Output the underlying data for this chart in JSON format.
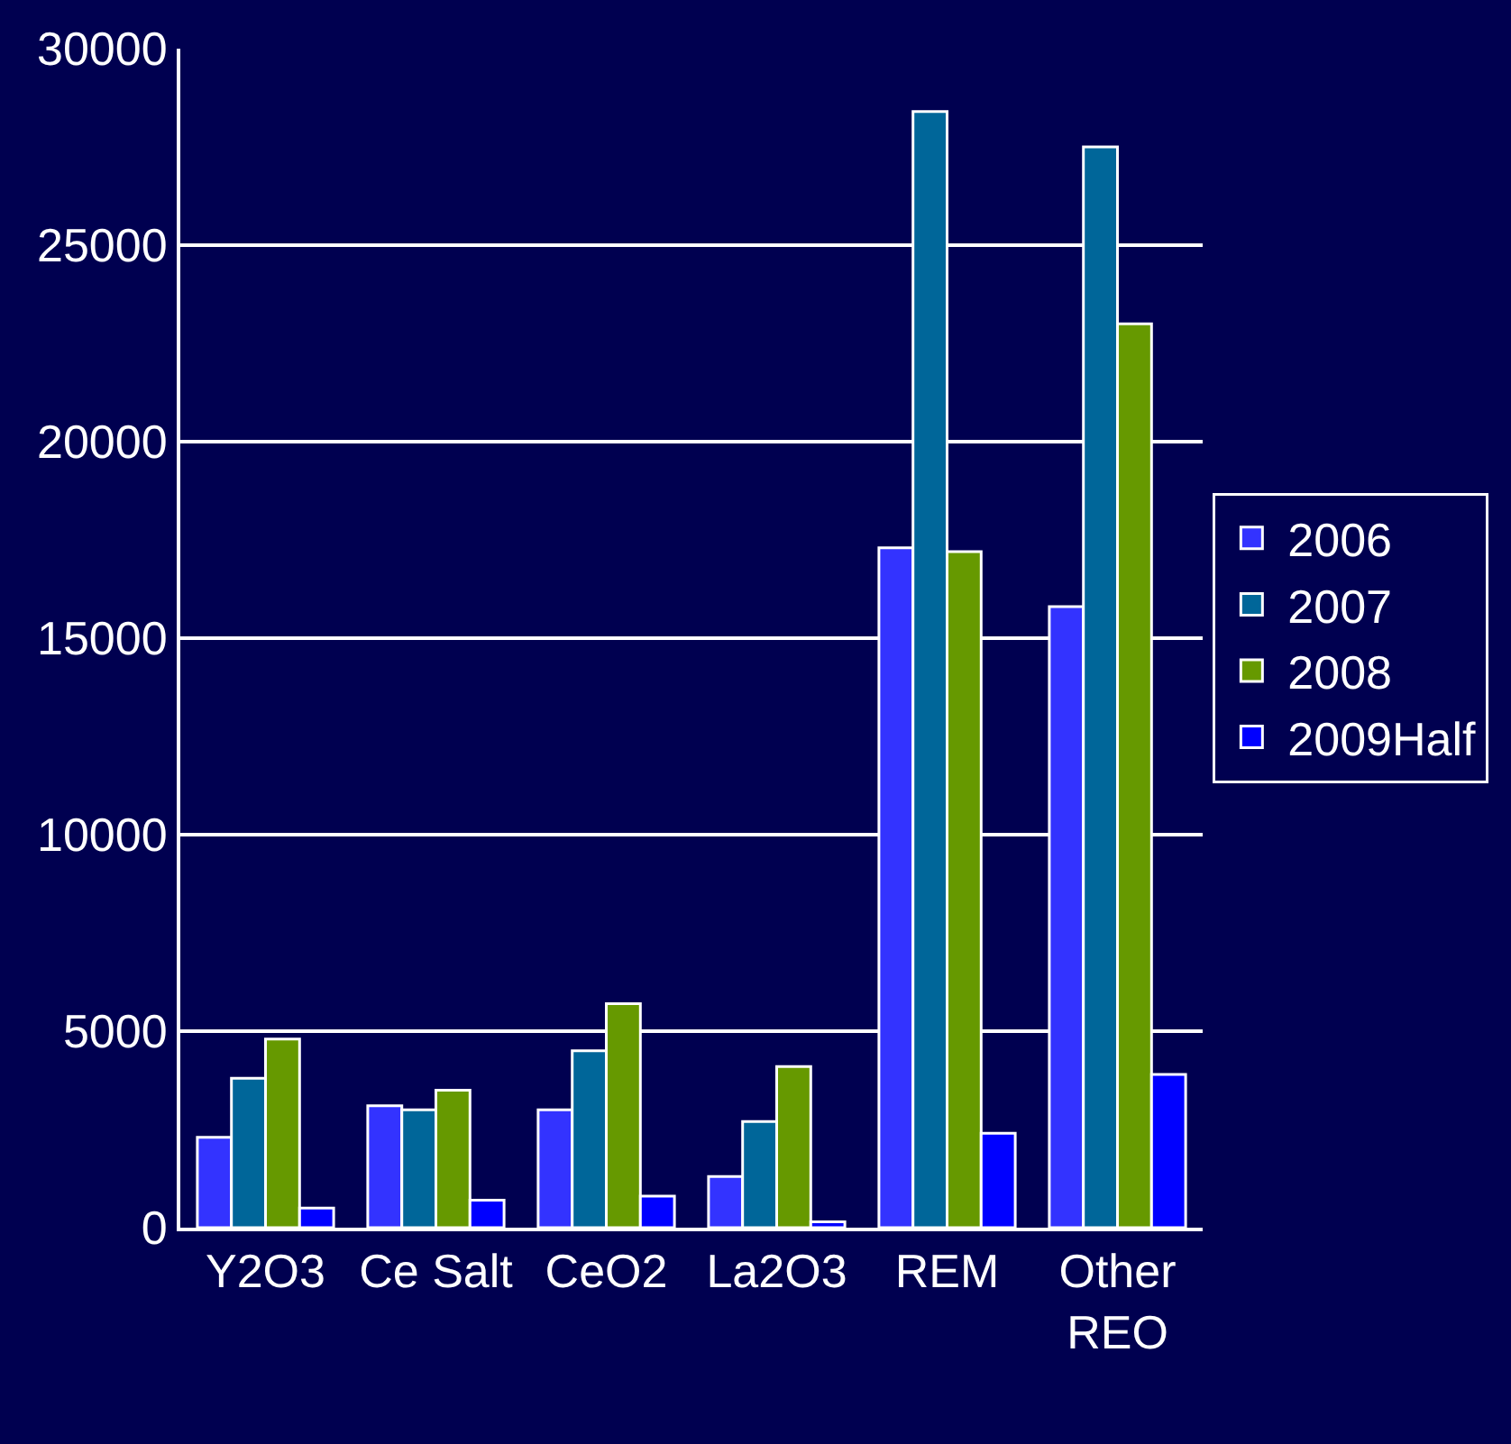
{
  "chart_data": {
    "type": "bar",
    "categories": [
      "Y2O3",
      "Ce Salt",
      "CeO2",
      "La2O3",
      "REM",
      "Other\nREO"
    ],
    "series": [
      {
        "name": "2006",
        "color": "#3333ff",
        "values": [
          2300,
          3100,
          3000,
          1300,
          17300,
          15800
        ]
      },
      {
        "name": "2007",
        "color": "#006699",
        "values": [
          3800,
          3000,
          4500,
          2700,
          28400,
          27500
        ]
      },
      {
        "name": "2008",
        "color": "#669900",
        "values": [
          4800,
          3500,
          5700,
          4100,
          17200,
          23000
        ]
      },
      {
        "name": "2009Half",
        "color": "#0000ff",
        "values": [
          500,
          700,
          800,
          150,
          2400,
          3900
        ]
      }
    ],
    "ylim": [
      0,
      30000
    ],
    "yticks": [
      0,
      5000,
      10000,
      15000,
      20000,
      25000,
      30000
    ],
    "grid": "y",
    "legend": "right"
  }
}
